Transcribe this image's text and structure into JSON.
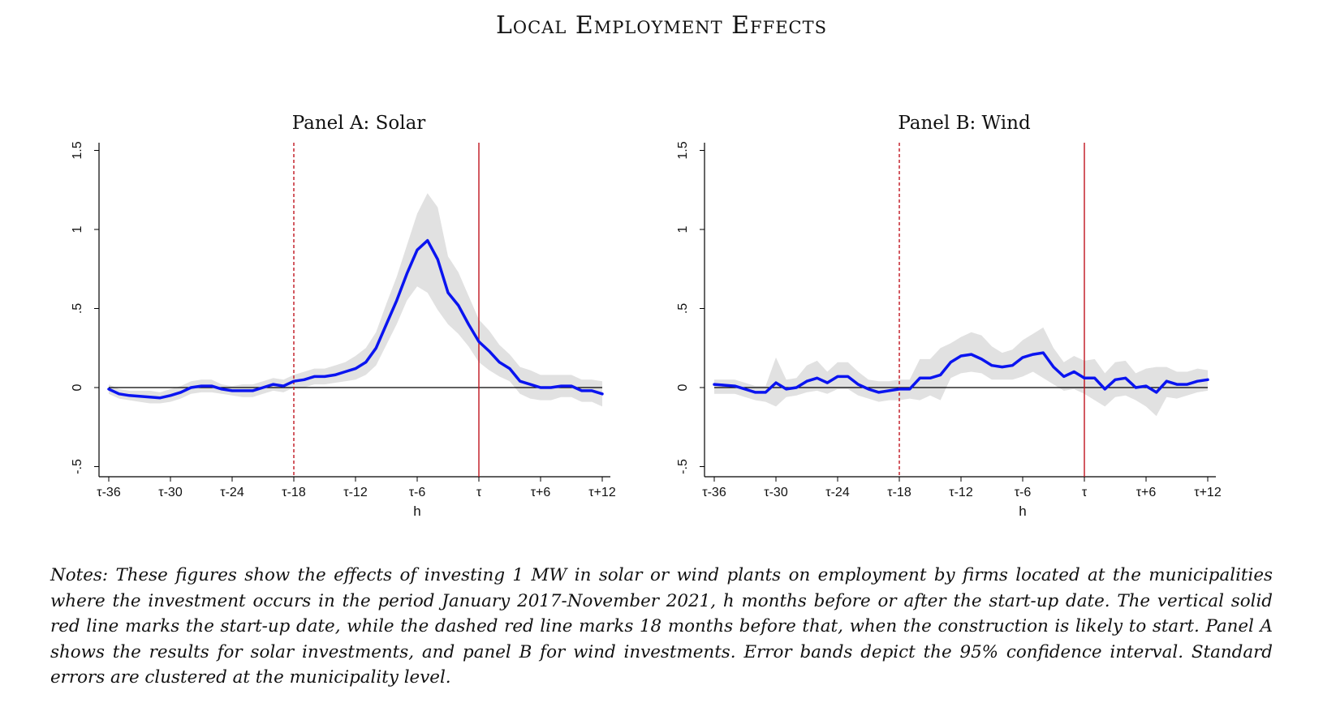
{
  "title": "Local Employment Effects",
  "notes": "Notes: These figures show the effects of investing 1 MW in solar or wind plants on employment by firms located at the municipalities where the investment occurs in the period January 2017-November 2021, h months before or after the start-up date. The vertical solid red line marks the start-up date, while the dashed red line marks 18 months before that, when the construction is likely to start. Panel A shows the results for solar investments, and panel B for wind investments. Error bands depict the 95% confidence interval. Standard errors are clustered at the municipality level.",
  "colors": {
    "estimate": "#0a14f0",
    "band": "#e1e1e1",
    "vline": "#c0141e",
    "zero": "#000000"
  },
  "chart_data": [
    {
      "type": "line",
      "title": "Panel A: Solar",
      "xlabel": "h",
      "ylabel": "",
      "xlim": [
        -36,
        12
      ],
      "ylim": [
        -0.5,
        1.5
      ],
      "xticks": [
        -36,
        -30,
        -24,
        -18,
        -12,
        -6,
        0,
        6,
        12
      ],
      "xtick_labels": [
        "τ-36",
        "τ-30",
        "τ-24",
        "τ-18",
        "τ-12",
        "τ-6",
        "τ",
        "τ+6",
        "τ+12"
      ],
      "yticks": [
        -0.5,
        0,
        0.5,
        1,
        1.5
      ],
      "ytick_labels": [
        "-.5",
        "0",
        ".5",
        "1",
        "1.5"
      ],
      "vlines": [
        {
          "x": -18,
          "style": "dashed"
        },
        {
          "x": 0,
          "style": "solid"
        }
      ],
      "x": [
        -36,
        -35,
        -34,
        -33,
        -32,
        -31,
        -30,
        -29,
        -28,
        -27,
        -26,
        -25,
        -24,
        -23,
        -22,
        -21,
        -20,
        -19,
        -18,
        -17,
        -16,
        -15,
        -14,
        -13,
        -12,
        -11,
        -10,
        -9,
        -8,
        -7,
        -6,
        -5,
        -4,
        -3,
        -2,
        -1,
        0,
        1,
        2,
        3,
        4,
        5,
        6,
        7,
        8,
        9,
        10,
        11,
        12
      ],
      "series": [
        {
          "values": [
            -0.01,
            -0.04,
            -0.05,
            -0.055,
            -0.06,
            -0.065,
            -0.05,
            -0.03,
            0.0,
            0.01,
            0.01,
            -0.01,
            -0.02,
            -0.02,
            -0.02,
            0.0,
            0.02,
            0.01,
            0.04,
            0.05,
            0.07,
            0.07,
            0.08,
            0.1,
            0.12,
            0.16,
            0.25,
            0.4,
            0.55,
            0.72,
            0.87,
            0.93,
            0.81,
            0.6,
            0.52,
            0.4,
            0.29,
            0.23,
            0.16,
            0.12,
            0.04,
            0.02,
            0.0,
            0.0,
            0.01,
            0.01,
            -0.02,
            -0.02,
            -0.04
          ],
          "lower": [
            -0.04,
            -0.07,
            -0.08,
            -0.09,
            -0.1,
            -0.1,
            -0.09,
            -0.07,
            -0.04,
            -0.03,
            -0.03,
            -0.04,
            -0.05,
            -0.06,
            -0.06,
            -0.04,
            -0.02,
            -0.03,
            0.0,
            0.0,
            0.02,
            0.02,
            0.03,
            0.04,
            0.05,
            0.08,
            0.14,
            0.27,
            0.4,
            0.55,
            0.64,
            0.6,
            0.49,
            0.4,
            0.34,
            0.26,
            0.16,
            0.11,
            0.07,
            0.04,
            -0.04,
            -0.07,
            -0.08,
            -0.08,
            -0.06,
            -0.06,
            -0.09,
            -0.09,
            -0.12
          ],
          "upper": [
            0.02,
            -0.01,
            -0.02,
            -0.02,
            -0.02,
            -0.03,
            -0.01,
            0.01,
            0.04,
            0.05,
            0.05,
            0.02,
            0.01,
            0.02,
            0.02,
            0.04,
            0.06,
            0.05,
            0.08,
            0.1,
            0.12,
            0.12,
            0.14,
            0.16,
            0.2,
            0.25,
            0.35,
            0.53,
            0.7,
            0.9,
            1.1,
            1.23,
            1.14,
            0.83,
            0.73,
            0.58,
            0.43,
            0.36,
            0.27,
            0.21,
            0.13,
            0.11,
            0.08,
            0.08,
            0.08,
            0.08,
            0.05,
            0.05,
            0.04
          ]
        }
      ]
    },
    {
      "type": "line",
      "title": "Panel B: Wind",
      "xlabel": "h",
      "ylabel": "",
      "xlim": [
        -36,
        12
      ],
      "ylim": [
        -0.5,
        1.5
      ],
      "xticks": [
        -36,
        -30,
        -24,
        -18,
        -12,
        -6,
        0,
        6,
        12
      ],
      "xtick_labels": [
        "τ-36",
        "τ-30",
        "τ-24",
        "τ-18",
        "τ-12",
        "τ-6",
        "τ",
        "τ+6",
        "τ+12"
      ],
      "yticks": [
        -0.5,
        0,
        0.5,
        1,
        1.5
      ],
      "ytick_labels": [
        "-.5",
        "0",
        ".5",
        "1",
        "1.5"
      ],
      "vlines": [
        {
          "x": -18,
          "style": "dashed"
        },
        {
          "x": 0,
          "style": "solid"
        }
      ],
      "x": [
        -36,
        -35,
        -34,
        -33,
        -32,
        -31,
        -30,
        -29,
        -28,
        -27,
        -26,
        -25,
        -24,
        -23,
        -22,
        -21,
        -20,
        -19,
        -18,
        -17,
        -16,
        -15,
        -14,
        -13,
        -12,
        -11,
        -10,
        -9,
        -8,
        -7,
        -6,
        -5,
        -4,
        -3,
        -2,
        -1,
        0,
        1,
        2,
        3,
        4,
        5,
        6,
        7,
        8,
        9,
        10,
        11,
        12
      ],
      "series": [
        {
          "values": [
            0.02,
            0.015,
            0.01,
            -0.01,
            -0.03,
            -0.03,
            0.03,
            -0.01,
            0.0,
            0.04,
            0.06,
            0.03,
            0.07,
            0.07,
            0.02,
            -0.01,
            -0.03,
            -0.02,
            -0.01,
            -0.01,
            0.06,
            0.06,
            0.08,
            0.16,
            0.2,
            0.21,
            0.18,
            0.14,
            0.13,
            0.14,
            0.19,
            0.21,
            0.22,
            0.13,
            0.07,
            0.1,
            0.06,
            0.06,
            -0.01,
            0.05,
            0.06,
            0.0,
            0.01,
            -0.03,
            0.04,
            0.02,
            0.02,
            0.04,
            0.05
          ],
          "lower": [
            -0.04,
            -0.04,
            -0.04,
            -0.06,
            -0.08,
            -0.09,
            -0.12,
            -0.06,
            -0.05,
            -0.03,
            -0.02,
            -0.04,
            -0.01,
            -0.01,
            -0.05,
            -0.07,
            -0.09,
            -0.08,
            -0.08,
            -0.07,
            -0.08,
            -0.05,
            -0.08,
            0.06,
            0.09,
            0.1,
            0.09,
            0.05,
            0.05,
            0.05,
            0.07,
            0.1,
            0.06,
            0.02,
            -0.02,
            -0.01,
            -0.04,
            -0.08,
            -0.12,
            -0.06,
            -0.05,
            -0.08,
            -0.12,
            -0.18,
            -0.06,
            -0.07,
            -0.05,
            -0.03,
            -0.02
          ],
          "upper": [
            0.05,
            0.05,
            0.05,
            0.03,
            0.01,
            0.01,
            0.19,
            0.05,
            0.06,
            0.14,
            0.17,
            0.1,
            0.16,
            0.16,
            0.1,
            0.05,
            0.04,
            0.04,
            0.05,
            0.05,
            0.18,
            0.18,
            0.25,
            0.28,
            0.32,
            0.35,
            0.33,
            0.26,
            0.22,
            0.24,
            0.3,
            0.34,
            0.38,
            0.25,
            0.16,
            0.2,
            0.17,
            0.18,
            0.09,
            0.16,
            0.17,
            0.09,
            0.12,
            0.13,
            0.13,
            0.1,
            0.1,
            0.12,
            0.11
          ]
        }
      ]
    }
  ]
}
